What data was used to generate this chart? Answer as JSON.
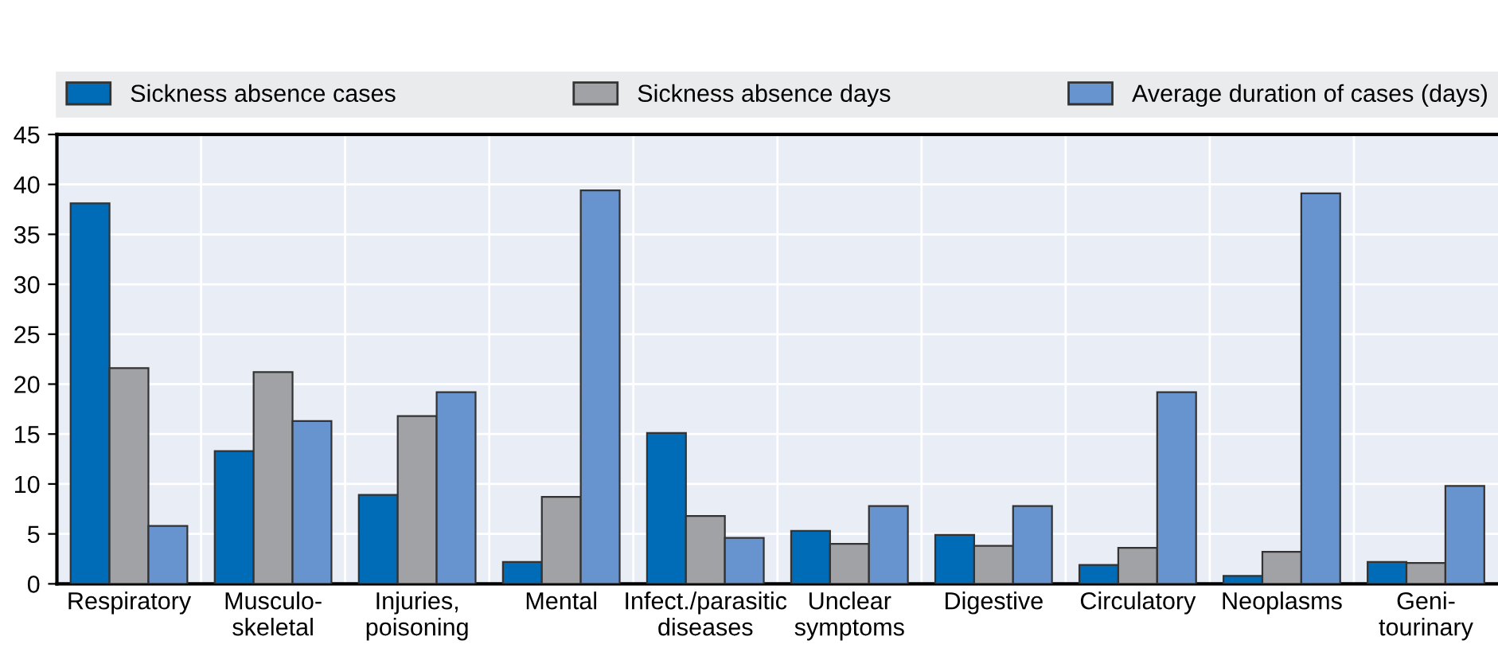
{
  "chart_data": {
    "type": "bar",
    "categories": [
      "Respiratory",
      "Musculo-\nskeletal",
      "Injuries,\npoisoning",
      "Mental",
      "Infect./parasitic\ndiseases",
      "Unclear\nsymptoms",
      "Digestive",
      "Circulatory",
      "Neoplasms",
      "Geni-\ntourinary"
    ],
    "series": [
      {
        "name": "Sickness absence cases",
        "color": "#006bb6",
        "values": [
          38.1,
          13.3,
          8.9,
          2.2,
          15.1,
          5.3,
          4.9,
          1.9,
          0.8,
          2.2
        ]
      },
      {
        "name": "Sickness absence days",
        "color": "#a0a2a6",
        "values": [
          21.6,
          21.2,
          16.8,
          8.7,
          6.8,
          4.0,
          3.8,
          3.6,
          3.2,
          2.1
        ]
      },
      {
        "name": "Average duration of cases (days)",
        "color": "#6794ce",
        "values": [
          5.8,
          16.3,
          19.2,
          39.4,
          4.6,
          7.8,
          7.8,
          19.2,
          39.1,
          9.8
        ]
      }
    ],
    "ylim": [
      0,
      45
    ],
    "yticks": [
      0,
      5,
      10,
      15,
      20,
      25,
      30,
      35,
      40,
      45
    ],
    "grid": true,
    "legend": "top"
  }
}
